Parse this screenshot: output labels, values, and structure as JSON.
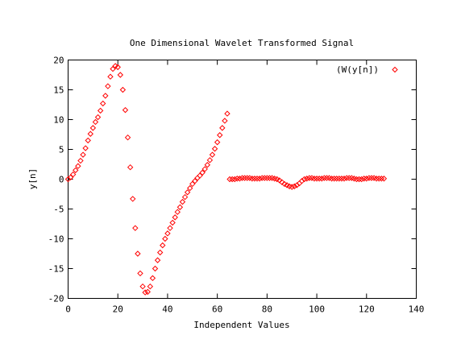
{
  "chart_data": {
    "type": "scatter",
    "title": "One Dimensional Wavelet Transformed Signal",
    "xlabel": "Independent Values",
    "ylabel": "y[n]",
    "xlim": [
      0,
      140
    ],
    "ylim": [
      -20,
      20
    ],
    "x_ticks": [
      0,
      20,
      40,
      60,
      80,
      100,
      120,
      140
    ],
    "y_ticks": [
      -20,
      -15,
      -10,
      -5,
      0,
      5,
      10,
      15,
      20
    ],
    "grid": false,
    "legend_position": "top-right",
    "marker": "diamond",
    "series": [
      {
        "name": "(W(y[n])",
        "color": "#ff0000",
        "x": [
          0,
          1,
          2,
          3,
          4,
          5,
          6,
          7,
          8,
          9,
          10,
          11,
          12,
          13,
          14,
          15,
          16,
          17,
          18,
          19,
          20,
          21,
          22,
          23,
          24,
          25,
          26,
          27,
          28,
          29,
          30,
          31,
          32,
          33,
          34,
          35,
          36,
          37,
          38,
          39,
          40,
          41,
          42,
          43,
          44,
          45,
          46,
          47,
          48,
          49,
          50,
          51,
          52,
          53,
          54,
          55,
          56,
          57,
          58,
          59,
          60,
          61,
          62,
          63,
          64,
          65,
          66,
          67,
          68,
          69,
          70,
          71,
          72,
          73,
          74,
          75,
          76,
          77,
          78,
          79,
          80,
          81,
          82,
          83,
          84,
          85,
          86,
          87,
          88,
          89,
          90,
          91,
          92,
          93,
          94,
          95,
          96,
          97,
          98,
          99,
          100,
          101,
          102,
          103,
          104,
          105,
          106,
          107,
          108,
          109,
          110,
          111,
          112,
          113,
          114,
          115,
          116,
          117,
          118,
          119,
          120,
          121,
          122,
          123,
          124,
          125,
          126,
          127
        ],
        "y": [
          0,
          0.3,
          0.8,
          1.5,
          2.2,
          3.1,
          4.1,
          5.2,
          6.5,
          7.6,
          8.6,
          9.6,
          10.4,
          11.5,
          12.7,
          14.0,
          15.6,
          17.2,
          18.5,
          19.0,
          18.8,
          17.5,
          15.0,
          11.6,
          7.0,
          2.0,
          -3.3,
          -8.2,
          -12.5,
          -15.8,
          -18.0,
          -19.0,
          -18.9,
          -18.0,
          -16.6,
          -15.0,
          -13.6,
          -12.3,
          -11.1,
          -10.0,
          -9.1,
          -8.2,
          -7.3,
          -6.4,
          -5.5,
          -4.7,
          -3.8,
          -3.0,
          -2.2,
          -1.5,
          -0.8,
          -0.3,
          0.2,
          0.6,
          1.1,
          1.7,
          2.4,
          3.2,
          4.1,
          5.1,
          6.2,
          7.4,
          8.6,
          9.8,
          11.0,
          0.0,
          0.0,
          0.0,
          0.1,
          0.1,
          0.2,
          0.2,
          0.2,
          0.2,
          0.1,
          0.1,
          0.1,
          0.1,
          0.2,
          0.2,
          0.2,
          0.2,
          0.2,
          0.1,
          0.0,
          -0.2,
          -0.5,
          -0.8,
          -1.0,
          -1.2,
          -1.3,
          -1.2,
          -1.0,
          -0.7,
          -0.3,
          0.0,
          0.1,
          0.2,
          0.2,
          0.1,
          0.1,
          0.1,
          0.1,
          0.2,
          0.2,
          0.2,
          0.1,
          0.1,
          0.1,
          0.1,
          0.1,
          0.1,
          0.2,
          0.2,
          0.2,
          0.1,
          0.0,
          0.0,
          0.0,
          0.1,
          0.1,
          0.2,
          0.2,
          0.2,
          0.1,
          0.1,
          0.1,
          0.1
        ]
      }
    ]
  }
}
